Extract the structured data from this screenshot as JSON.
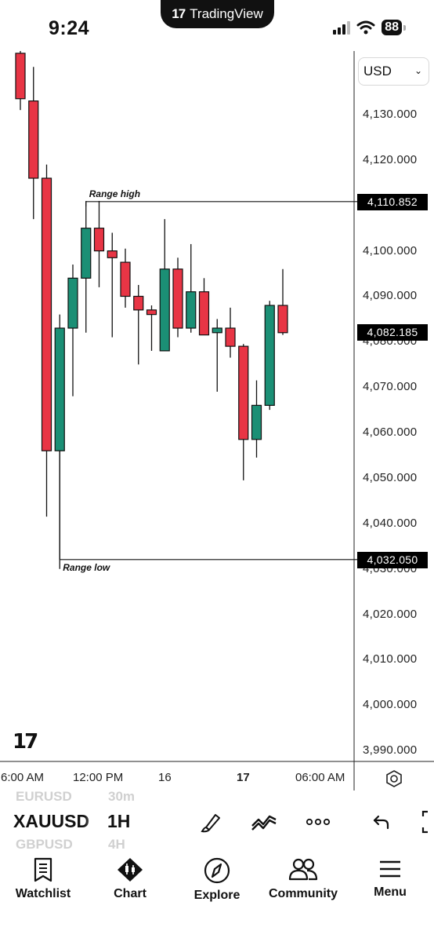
{
  "status_bar": {
    "time": "9:24",
    "app_pill": "TradingView",
    "battery": "88"
  },
  "chart": {
    "currency": "USD",
    "price_labels": [
      "4,130.000",
      "4,120.000",
      "4,100.000",
      "4,090.000",
      "4,080.000",
      "4,070.000",
      "4,060.000",
      "4,050.000",
      "4,040.000",
      "4,030.000",
      "4,020.000",
      "4,010.000",
      "4,000.000",
      "3,990.000"
    ],
    "price_tags": {
      "range_high": "4,110.852",
      "current": "4,082.185",
      "range_low": "4,032.050"
    },
    "annotations": {
      "range_high": "Range high",
      "range_low": "Range low"
    },
    "time_labels": [
      "6:00 AM",
      "12:00 PM",
      "16",
      "17",
      "06:00 AM"
    ],
    "colors": {
      "up": "#1b8f75",
      "down": "#e83545"
    }
  },
  "chart_data": {
    "type": "candlestick",
    "symbol": "XAUUSD",
    "interval": "1H",
    "currency": "USD",
    "candles": [
      {
        "o": 4143.5,
        "h": 4144,
        "l": 4131,
        "c": 4133.5
      },
      {
        "o": 4133,
        "h": 4140.5,
        "l": 4107,
        "c": 4116
      },
      {
        "o": 4116,
        "h": 4119,
        "l": 4041.5,
        "c": 4056
      },
      {
        "o": 4056,
        "h": 4086,
        "l": 4030,
        "c": 4083
      },
      {
        "o": 4083,
        "h": 4097,
        "l": 4068,
        "c": 4094
      },
      {
        "o": 4094,
        "h": 4111,
        "l": 4082,
        "c": 4105
      },
      {
        "o": 4105,
        "h": 4111,
        "l": 4092,
        "c": 4100
      },
      {
        "o": 4100,
        "h": 4104,
        "l": 4081,
        "c": 4098.5
      },
      {
        "o": 4097.5,
        "h": 4100.5,
        "l": 4087.5,
        "c": 4090
      },
      {
        "o": 4090,
        "h": 4092.5,
        "l": 4075,
        "c": 4087
      },
      {
        "o": 4087,
        "h": 4088,
        "l": 4078,
        "c": 4086
      },
      {
        "o": 4078,
        "h": 4107,
        "l": 4078,
        "c": 4096
      },
      {
        "o": 4096,
        "h": 4098.5,
        "l": 4081,
        "c": 4083
      },
      {
        "o": 4083,
        "h": 4101.5,
        "l": 4082,
        "c": 4091
      },
      {
        "o": 4091,
        "h": 4094,
        "l": 4081.5,
        "c": 4081.5
      },
      {
        "o": 4082,
        "h": 4085,
        "l": 4069,
        "c": 4083
      },
      {
        "o": 4083,
        "h": 4087.5,
        "l": 4076.5,
        "c": 4079
      },
      {
        "o": 4079,
        "h": 4079.5,
        "l": 4049.5,
        "c": 4058.5
      },
      {
        "o": 4058.5,
        "h": 4071.5,
        "l": 4054.5,
        "c": 4066
      },
      {
        "o": 4066,
        "h": 4089,
        "l": 4065,
        "c": 4088
      },
      {
        "o": 4088,
        "h": 4096,
        "l": 4081.5,
        "c": 4082
      }
    ],
    "range_high": 4110.852,
    "range_low": 4032.05,
    "last_price": 4082.185,
    "y_ticks": [
      4130,
      4120,
      4110,
      4100,
      4090,
      4080,
      4070,
      4060,
      4050,
      4040,
      4030,
      4020,
      4010,
      4000,
      3990
    ],
    "x_labels": [
      "6:00 AM",
      "12:00 PM",
      "16",
      "17",
      "06:00 AM"
    ]
  },
  "toolbar": {
    "symbol": "XAUUSD",
    "interval": "1H",
    "ghost_symbol_above": "EURUSD",
    "ghost_symbol_below": "GBPUSD",
    "ghost_interval_above": "30m",
    "ghost_interval_below": "4H",
    "icons": [
      "brush-icon",
      "indicators-icon",
      "more-icon",
      "undo-icon",
      "fullscreen-icon"
    ]
  },
  "nav": [
    {
      "label": "Watchlist",
      "icon": "watchlist-icon"
    },
    {
      "label": "Chart",
      "icon": "chart-icon"
    },
    {
      "label": "Explore",
      "icon": "compass-icon"
    },
    {
      "label": "Community",
      "icon": "community-icon"
    },
    {
      "label": "Menu",
      "icon": "menu-icon"
    }
  ]
}
